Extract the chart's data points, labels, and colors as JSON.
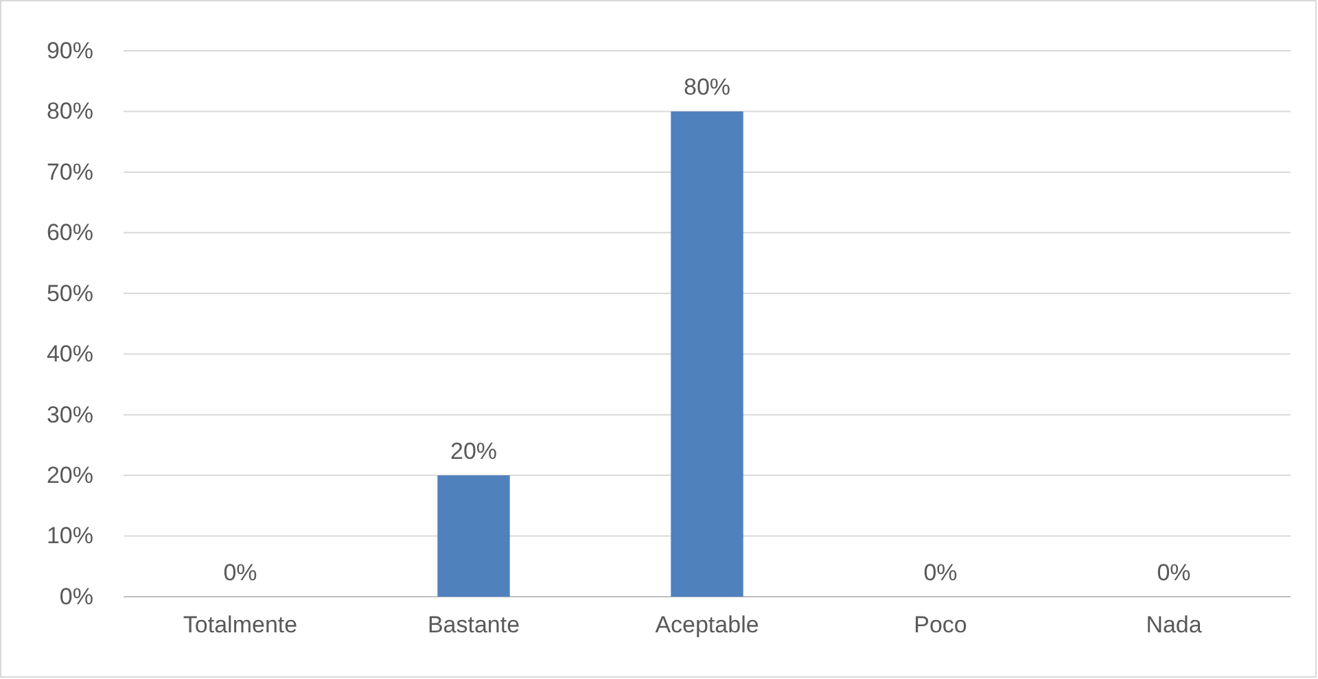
{
  "chart_data": {
    "type": "bar",
    "categories": [
      "Totalmente",
      "Bastante",
      "Aceptable",
      "Poco",
      "Nada"
    ],
    "values": [
      0,
      20,
      80,
      0,
      0
    ],
    "color": "#4f81bd",
    "value_labels": [
      "0%",
      "20%",
      "80%",
      "0%",
      "0%"
    ],
    "ylim": [
      0,
      90
    ],
    "yticks": [
      {
        "value": 0,
        "label": "0%"
      },
      {
        "value": 10,
        "label": "10%"
      },
      {
        "value": 20,
        "label": "20%"
      },
      {
        "value": 30,
        "label": "30%"
      },
      {
        "value": 40,
        "label": "40%"
      },
      {
        "value": 50,
        "label": "50%"
      },
      {
        "value": 60,
        "label": "60%"
      },
      {
        "value": 70,
        "label": "70%"
      },
      {
        "value": 80,
        "label": "80%"
      },
      {
        "value": 90,
        "label": "90%"
      }
    ],
    "grid": "y"
  }
}
